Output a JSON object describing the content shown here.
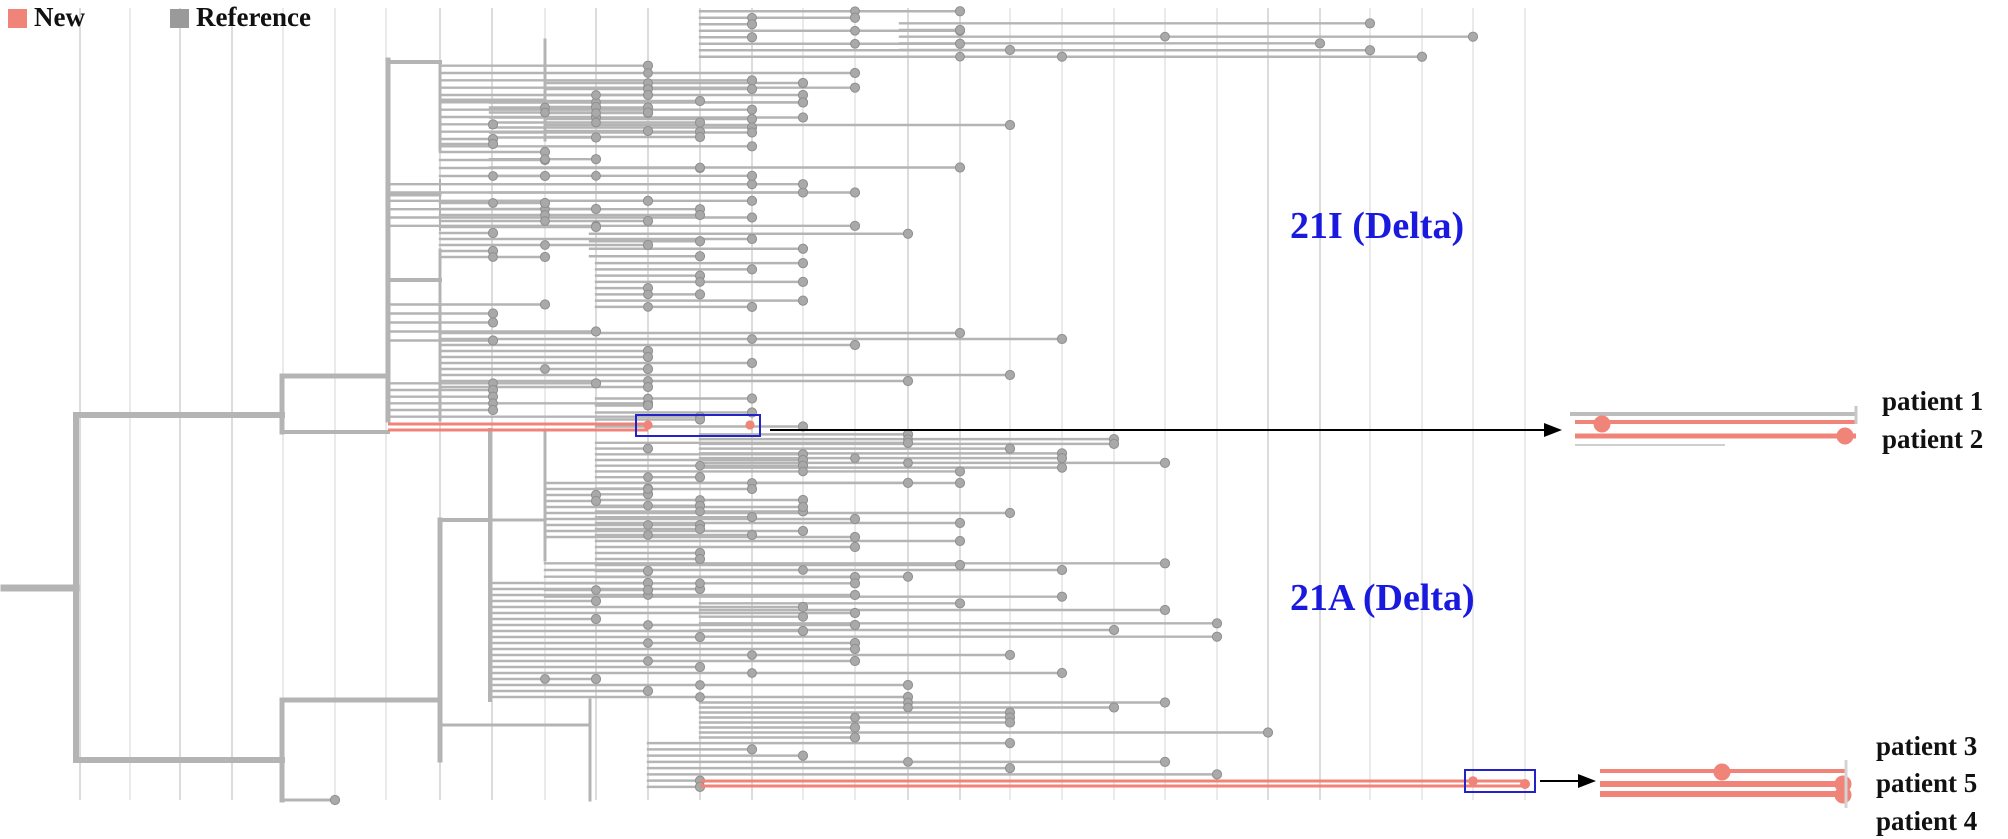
{
  "legend": [
    {
      "label": "New",
      "color": "#f08478"
    },
    {
      "label": "Reference",
      "color": "#9a9a9a"
    }
  ],
  "clades": [
    {
      "label": "21I (Delta)"
    },
    {
      "label": "21A (Delta)"
    }
  ],
  "insets": [
    {
      "patients": [
        "patient 1",
        "patient 2"
      ]
    },
    {
      "patients": [
        "patient 3",
        "patient 5",
        "patient 4"
      ]
    }
  ],
  "colors": {
    "new": "#f08478",
    "reference_branch": "#b4b4b4",
    "reference_node": "#a9a9a9",
    "grid": "#dcdcdc",
    "highlight_box": "#2323c8",
    "arrow": "#000000"
  }
}
